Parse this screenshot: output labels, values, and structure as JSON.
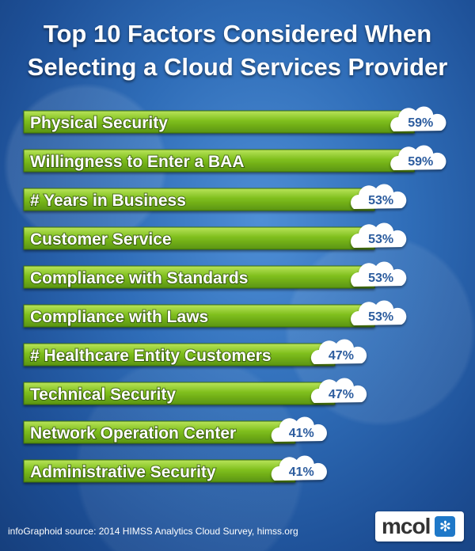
{
  "title_line1": "Top 10 Factors Considered When",
  "title_line2": "Selecting a Cloud Services Provider",
  "source": "infoGraphoid source:   2014 HIMSS Analytics Cloud Survey, himss.org",
  "logo": {
    "text": "mcol",
    "icon": "pinwheel-icon"
  },
  "colors": {
    "bar": "#7fbf1d",
    "bar_light": "#b9e45a",
    "cloud": "#ffffff",
    "value": "#2c5c9e"
  },
  "chart_data": {
    "type": "bar",
    "orientation": "horizontal",
    "categories": [
      "Physical Security",
      "Willingness to Enter a BAA",
      "# Years in Business",
      "Customer Service",
      "Compliance with Standards",
      "Compliance with Laws",
      "# Healthcare Entity Customers",
      "Technical Security",
      "Network Operation Center",
      "Administrative Security"
    ],
    "values": [
      59,
      59,
      53,
      53,
      53,
      53,
      47,
      47,
      41,
      41
    ],
    "value_labels": [
      "59%",
      "59%",
      "53%",
      "53%",
      "53%",
      "53%",
      "47%",
      "47%",
      "41%",
      "41%"
    ],
    "unit": "%",
    "grid": false,
    "legend": false
  }
}
